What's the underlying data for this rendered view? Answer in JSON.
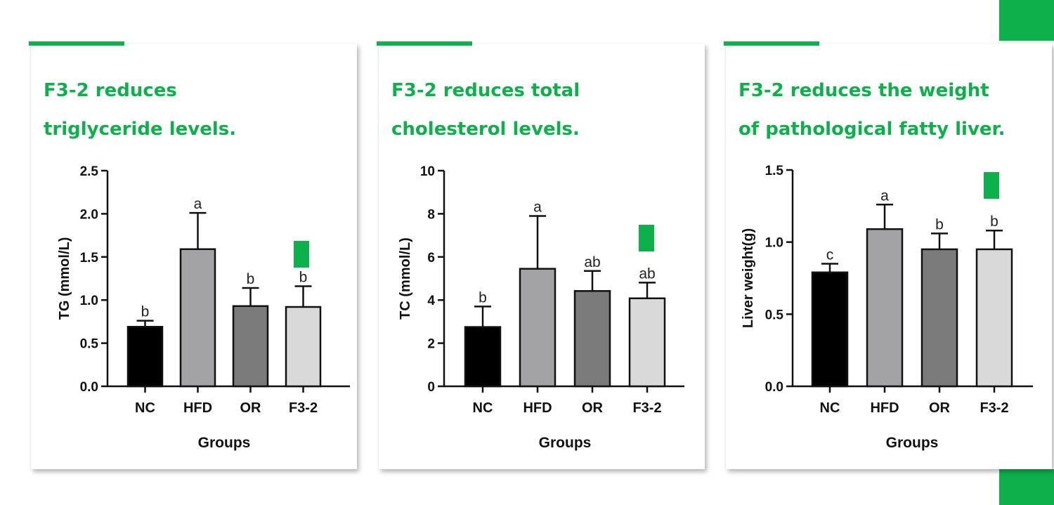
{
  "theme": {
    "accent": "#0db04b",
    "bar_colors": [
      "#000000",
      "#a3a3a6",
      "#7b7b7b",
      "#d9d9d9"
    ]
  },
  "panels": [
    {
      "title_line1": "F3-2 reduces",
      "title_line2": "triglyceride levels."
    },
    {
      "title_line1": "F3-2 reduces total",
      "title_line2": "cholesterol levels."
    },
    {
      "title_line1": "F3-2 reduces the weight",
      "title_line2": "of pathological fatty liver."
    }
  ],
  "chart_data": [
    {
      "type": "bar",
      "categories": [
        "NC",
        "HFD",
        "OR",
        "F3-2"
      ],
      "values": [
        0.69,
        1.59,
        0.93,
        0.92
      ],
      "errors": [
        0.07,
        0.42,
        0.21,
        0.24
      ],
      "significance_letters": [
        "b",
        "a",
        "b",
        "b"
      ],
      "xlabel": "Groups",
      "ylabel": "TG (mmol/L)",
      "ylim": [
        0,
        2.5
      ],
      "yticks": [
        "0.0",
        "0.5",
        "1.0",
        "1.5",
        "2.0",
        "2.5"
      ],
      "grid": false,
      "highlight_category": "F3-2"
    },
    {
      "type": "bar",
      "categories": [
        "NC",
        "HFD",
        "OR",
        "F3-2"
      ],
      "values": [
        2.75,
        5.45,
        4.42,
        4.08
      ],
      "errors": [
        0.95,
        2.45,
        0.93,
        0.73
      ],
      "significance_letters": [
        "b",
        "a",
        "ab",
        "ab"
      ],
      "xlabel": "Groups",
      "ylabel": "TC (mmol/L)",
      "ylim": [
        0,
        10
      ],
      "yticks": [
        "0",
        "2",
        "4",
        "6",
        "8",
        "10"
      ],
      "grid": false,
      "highlight_category": "F3-2"
    },
    {
      "type": "bar",
      "categories": [
        "NC",
        "HFD",
        "OR",
        "F3-2"
      ],
      "values": [
        0.79,
        1.09,
        0.95,
        0.95
      ],
      "errors": [
        0.06,
        0.17,
        0.11,
        0.13
      ],
      "significance_letters": [
        "c",
        "a",
        "b",
        "b"
      ],
      "xlabel": "Groups",
      "ylabel": "Liver weight(g)",
      "ylim": [
        0,
        1.5
      ],
      "yticks": [
        "0.0",
        "0.5",
        "1.0",
        "1.5"
      ],
      "grid": false,
      "highlight_category": "F3-2"
    }
  ]
}
